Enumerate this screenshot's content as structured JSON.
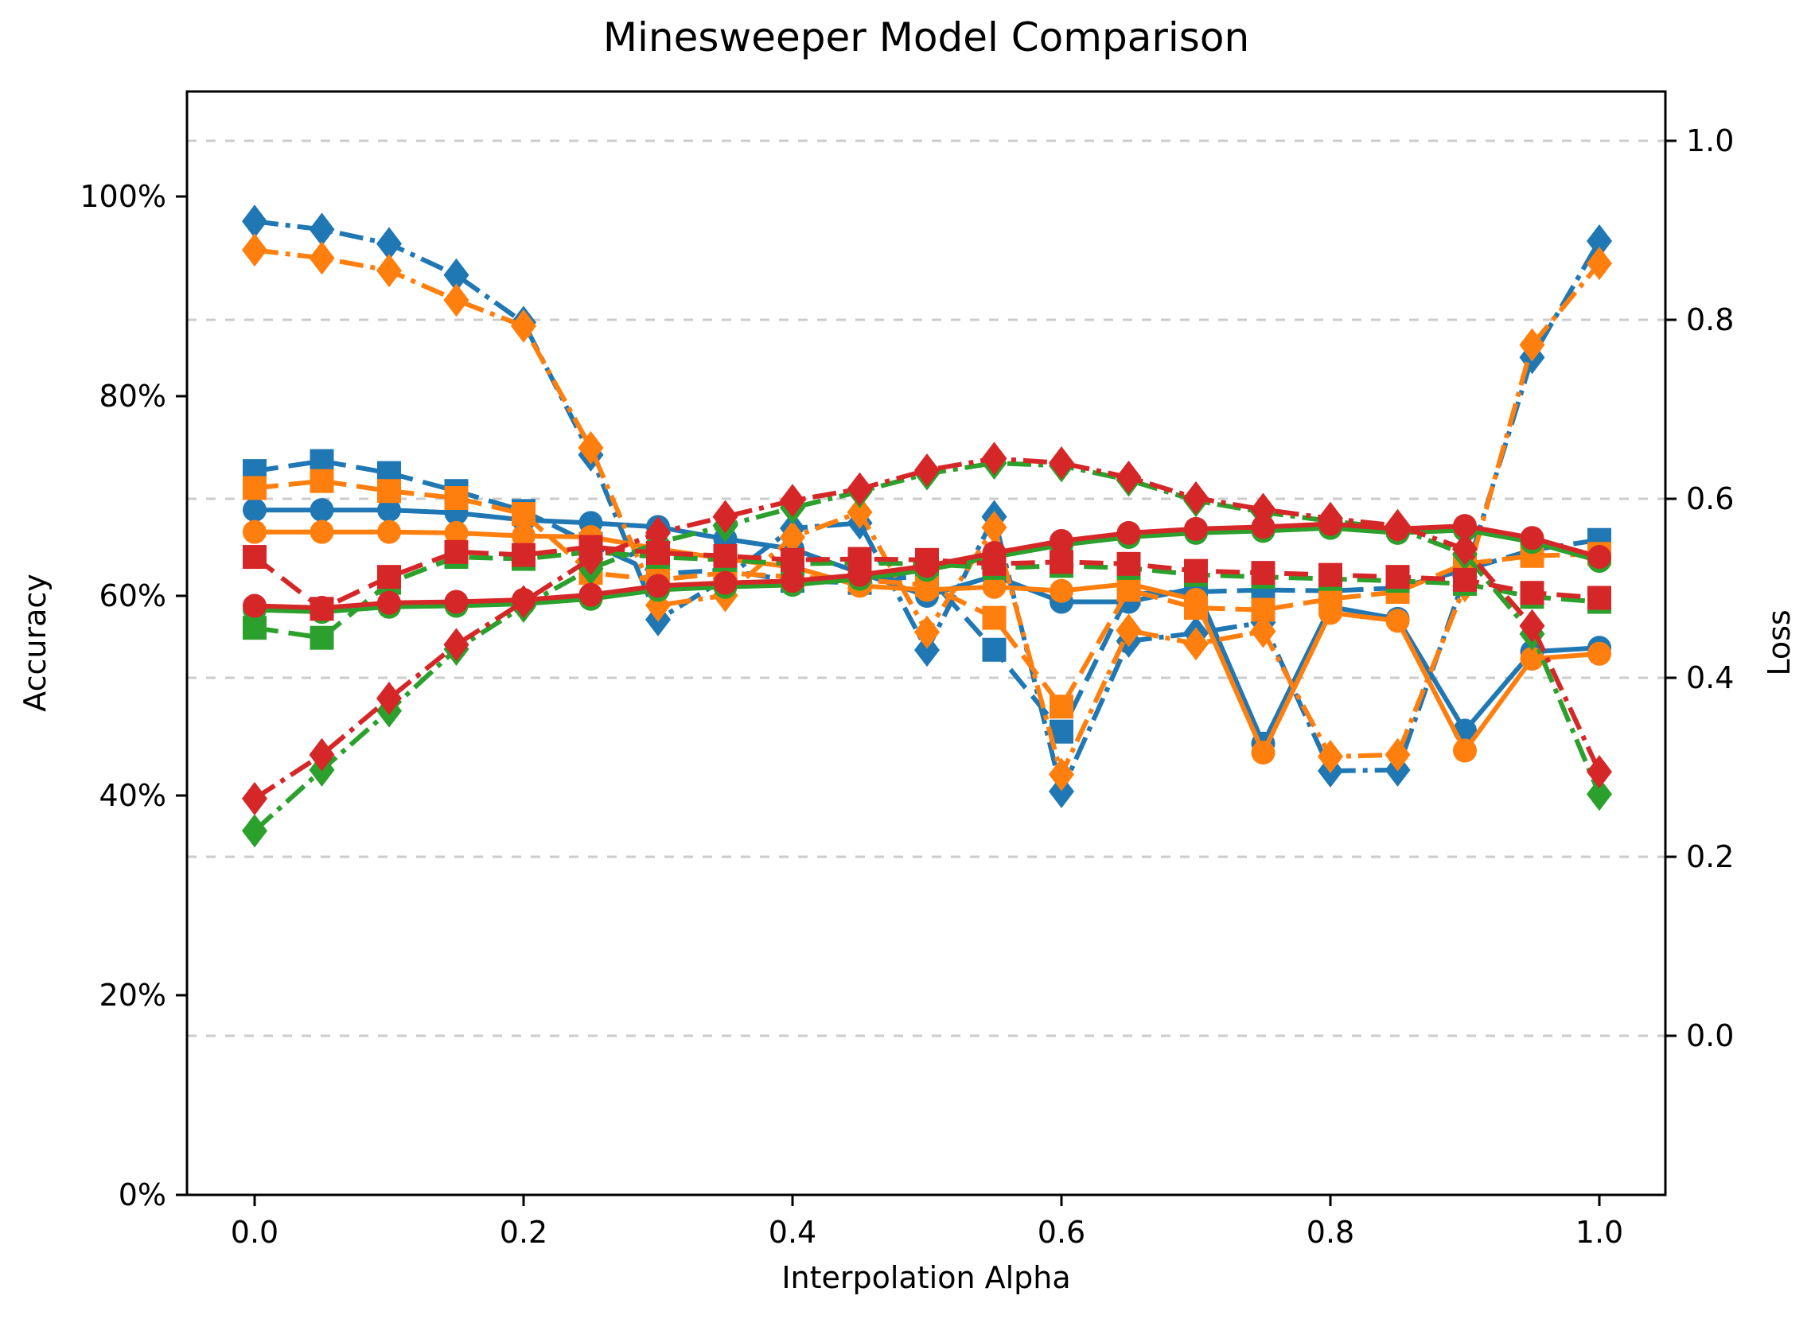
{
  "chart_data": {
    "type": "line",
    "title": "Minesweeper Model Comparison",
    "xlabel": "Interpolation Alpha",
    "ylabel_left": "Accuracy",
    "ylabel_right": "Loss",
    "legend": "none",
    "grid": "horizontal-dashed-at-right-axis-ticks",
    "grid_color": "#cccccc",
    "background_color": "#ffffff",
    "x_axis": {
      "label": "Interpolation Alpha",
      "tick_values": [
        0.0,
        0.2,
        0.4,
        0.6,
        0.8,
        1.0
      ],
      "tick_labels": [
        "0.0",
        "0.2",
        "0.4",
        "0.6",
        "0.8",
        "1.0"
      ],
      "range": [
        -0.05,
        1.049
      ]
    },
    "y_axis_left": {
      "label": "Accuracy",
      "unit": "%",
      "tick_values": [
        0,
        20,
        40,
        60,
        80,
        100
      ],
      "tick_labels": [
        "0%",
        "20%",
        "40%",
        "60%",
        "80%",
        "100%"
      ],
      "range": [
        0,
        110.5
      ]
    },
    "y_axis_right": {
      "label": "Loss",
      "tick_values": [
        0.0,
        0.2,
        0.4,
        0.6,
        0.8,
        1.0
      ],
      "tick_labels": [
        "0.0",
        "0.2",
        "0.4",
        "0.6",
        "0.8",
        "1.0"
      ],
      "range": [
        -0.178,
        1.055
      ]
    },
    "alphas": [
      0.0,
      0.05,
      0.1,
      0.15,
      0.2,
      0.25,
      0.3,
      0.35,
      0.4,
      0.45,
      0.5,
      0.55,
      0.6,
      0.65,
      0.7,
      0.75,
      0.8,
      0.85,
      0.9,
      0.95,
      1.0
    ],
    "series": [
      {
        "name": "blue-accuracy-circle-solid",
        "color": "#1f77b4",
        "marker": "circle",
        "line_style": "solid",
        "axis": "left",
        "values": [
          68.6,
          68.6,
          68.6,
          68.3,
          67.6,
          67.3,
          66.9,
          65.7,
          64.7,
          62.3,
          60.0,
          62.0,
          59.4,
          59.4,
          60.8,
          45.2,
          58.9,
          57.7,
          46.5,
          54.4,
          54.8
        ]
      },
      {
        "name": "blue-accuracy-square-dashed",
        "color": "#1f77b4",
        "marker": "square",
        "line_style": "dashed",
        "axis": "left",
        "values": [
          72.5,
          73.5,
          72.3,
          70.5,
          68.5,
          65.2,
          62.2,
          62.6,
          61.5,
          61.3,
          62.1,
          54.6,
          46.4,
          60.2,
          60.4,
          60.6,
          60.5,
          60.8,
          62.6,
          64.6,
          65.6
        ]
      },
      {
        "name": "blue-loss-diamond-dashdot",
        "color": "#1f77b4",
        "marker": "diamond",
        "line_style": "dashdot",
        "axis": "right",
        "values": [
          0.91,
          0.901,
          0.885,
          0.85,
          0.797,
          0.649,
          0.465,
          0.511,
          0.567,
          0.573,
          0.431,
          0.58,
          0.273,
          0.441,
          0.45,
          0.462,
          0.296,
          0.297,
          0.513,
          0.758,
          0.888
        ]
      },
      {
        "name": "orange-accuracy-circle-solid",
        "color": "#ff7f0e",
        "marker": "circle",
        "line_style": "solid",
        "axis": "left",
        "values": [
          66.4,
          66.4,
          66.4,
          66.3,
          66.0,
          65.9,
          64.7,
          63.7,
          62.9,
          61.0,
          60.6,
          60.9,
          60.5,
          61.2,
          59.6,
          44.3,
          58.3,
          57.5,
          44.5,
          53.7,
          54.2
        ]
      },
      {
        "name": "orange-accuracy-square-dashed",
        "color": "#ff7f0e",
        "marker": "square",
        "line_style": "dashed",
        "axis": "left",
        "values": [
          70.8,
          71.5,
          70.5,
          69.8,
          68.2,
          62.3,
          61.6,
          62.3,
          61.9,
          61.6,
          61.1,
          57.8,
          48.9,
          60.6,
          58.8,
          58.6,
          59.7,
          60.4,
          63.2,
          64.0,
          64.2
        ]
      },
      {
        "name": "orange-loss-diamond-dashdot",
        "color": "#ff7f0e",
        "marker": "diamond",
        "line_style": "dashdot",
        "axis": "right",
        "values": [
          0.878,
          0.869,
          0.855,
          0.822,
          0.793,
          0.657,
          0.481,
          0.492,
          0.557,
          0.585,
          0.451,
          0.568,
          0.292,
          0.453,
          0.438,
          0.452,
          0.312,
          0.314,
          0.503,
          0.772,
          0.863
        ]
      },
      {
        "name": "green-accuracy-circle-solid",
        "color": "#2ca02c",
        "marker": "circle",
        "line_style": "solid",
        "axis": "left",
        "values": [
          58.6,
          58.4,
          58.9,
          59.0,
          59.2,
          59.7,
          60.6,
          60.9,
          61.1,
          61.7,
          62.6,
          63.9,
          65.1,
          65.9,
          66.3,
          66.5,
          66.8,
          66.3,
          66.6,
          65.4,
          63.5
        ]
      },
      {
        "name": "green-accuracy-square-dashed",
        "color": "#2ca02c",
        "marker": "square",
        "line_style": "dashed",
        "axis": "left",
        "values": [
          56.8,
          55.8,
          61.3,
          63.9,
          63.7,
          64.4,
          63.9,
          63.6,
          63.2,
          63.3,
          63.2,
          62.8,
          63.0,
          62.8,
          62.1,
          61.9,
          61.7,
          61.5,
          61.2,
          59.9,
          59.4
        ]
      },
      {
        "name": "green-loss-diamond-dashdot",
        "color": "#2ca02c",
        "marker": "diamond",
        "line_style": "dashdot",
        "axis": "right",
        "values": [
          0.229,
          0.297,
          0.363,
          0.432,
          0.48,
          0.522,
          0.551,
          0.57,
          0.59,
          0.608,
          0.628,
          0.64,
          0.637,
          0.621,
          0.598,
          0.585,
          0.575,
          0.567,
          0.538,
          0.449,
          0.27
        ]
      },
      {
        "name": "red-accuracy-circle-solid",
        "color": "#d62728",
        "marker": "circle",
        "line_style": "solid",
        "axis": "left",
        "values": [
          59.0,
          58.8,
          59.3,
          59.4,
          59.6,
          60.1,
          61.0,
          61.3,
          61.5,
          62.1,
          63.0,
          64.3,
          65.5,
          66.3,
          66.7,
          66.9,
          67.2,
          66.7,
          67.0,
          65.8,
          63.9
        ]
      },
      {
        "name": "red-accuracy-square-dashed",
        "color": "#d62728",
        "marker": "square",
        "line_style": "dashed",
        "axis": "left",
        "values": [
          63.9,
          58.7,
          61.9,
          64.4,
          64.1,
          64.9,
          64.3,
          64.0,
          63.6,
          63.7,
          63.6,
          63.2,
          63.4,
          63.2,
          62.5,
          62.3,
          62.1,
          61.9,
          61.6,
          60.3,
          59.8
        ]
      },
      {
        "name": "red-loss-diamond-dashdot",
        "color": "#d62728",
        "marker": "diamond",
        "line_style": "dashdot",
        "axis": "right",
        "values": [
          0.265,
          0.314,
          0.377,
          0.437,
          0.485,
          0.533,
          0.562,
          0.58,
          0.598,
          0.611,
          0.632,
          0.645,
          0.64,
          0.624,
          0.601,
          0.588,
          0.578,
          0.57,
          0.544,
          0.458,
          0.295
        ]
      }
    ]
  }
}
